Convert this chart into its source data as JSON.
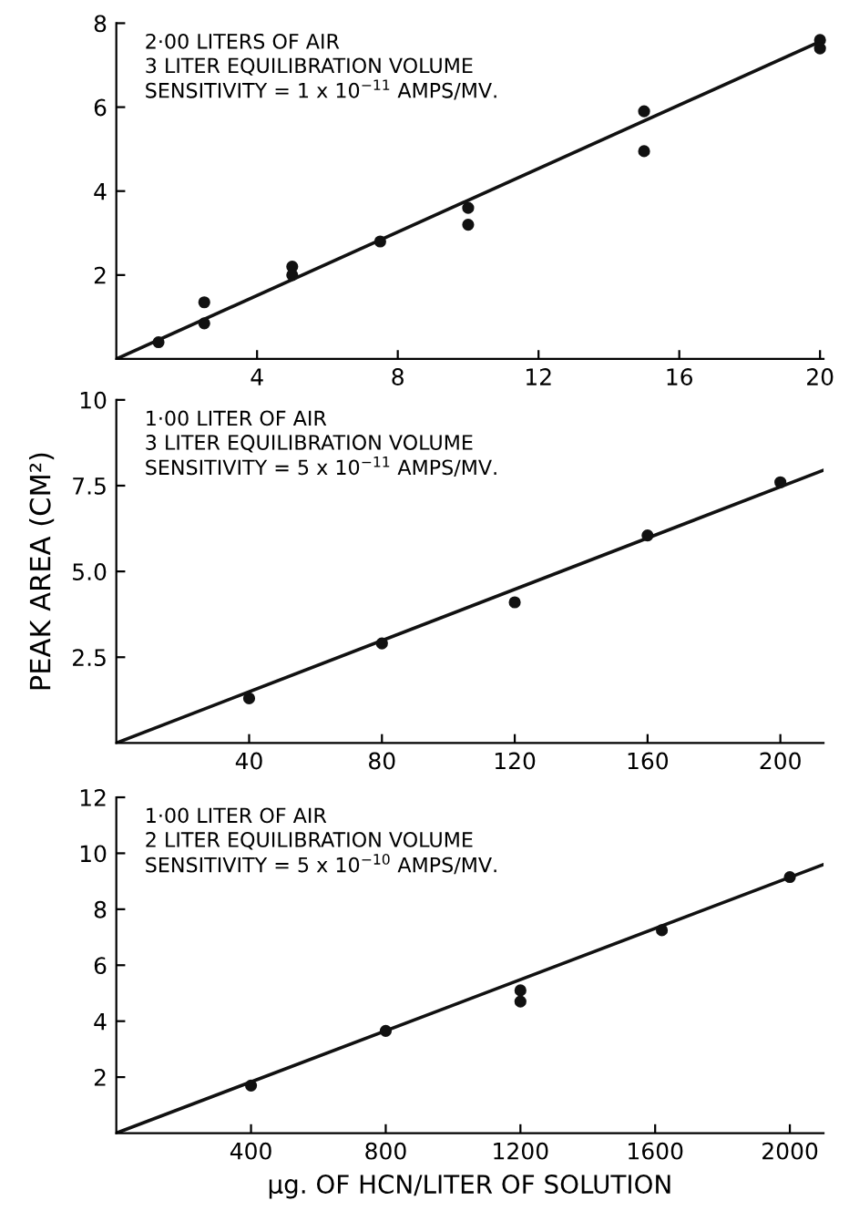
{
  "chart_data": [
    {
      "type": "scatter",
      "annotations": [
        "2·00 LITERS OF AIR",
        "3 LITER EQUILIBRATION VOLUME",
        "SENSITIVITY = 1 x 10$^{−11}$ AMPS/MV."
      ],
      "xlim": [
        0,
        20.1
      ],
      "ylim": [
        0,
        8
      ],
      "xticks": [
        4,
        8,
        12,
        16,
        20
      ],
      "yticks": [
        2,
        4,
        6,
        8
      ],
      "grid": false,
      "series": [
        {
          "color": "#111111",
          "marker": "circle",
          "x": [
            1.2,
            2.5,
            2.5,
            5,
            5,
            7.5,
            10,
            10,
            15,
            15,
            20,
            20
          ],
          "values": [
            0.4,
            1.35,
            0.85,
            2.2,
            2.0,
            2.8,
            3.6,
            3.2,
            5.9,
            4.95,
            7.6,
            7.4
          ]
        },
        {
          "type": "line",
          "color": "#111111",
          "x": [
            0,
            20.1
          ],
          "values": [
            0,
            7.6
          ]
        }
      ]
    },
    {
      "type": "scatter",
      "ylabel": "PEAK AREA (CM²)",
      "annotations": [
        "1·00 LITER OF AIR",
        "3 LITER EQUILIBRATION VOLUME",
        "SENSITIVITY = 5 x 10$^{−11}$ AMPS/MV."
      ],
      "xlim": [
        0,
        213
      ],
      "ylim": [
        0,
        10
      ],
      "xticks": [
        40,
        80,
        120,
        160,
        200
      ],
      "yticks": [
        2.5,
        {
          "value": 5,
          "label": "5.0"
        },
        7.5,
        10
      ],
      "grid": false,
      "series": [
        {
          "color": "#111111",
          "marker": "circle",
          "x": [
            40,
            80,
            120,
            160,
            200
          ],
          "values": [
            1.3,
            2.9,
            4.1,
            6.05,
            7.6
          ]
        },
        {
          "type": "line",
          "color": "#111111",
          "x": [
            0,
            213
          ],
          "values": [
            0,
            7.95
          ]
        }
      ]
    },
    {
      "type": "scatter",
      "xlabel": "µg. OF HCN/LITER OF SOLUTION",
      "annotations": [
        "1·00 LITER OF AIR",
        "2 LITER EQUILIBRATION VOLUME",
        "SENSITIVITY = 5 x 10$^{−10}$ AMPS/MV."
      ],
      "xlim": [
        0,
        2100
      ],
      "ylim": [
        0,
        12
      ],
      "xticks": [
        400,
        800,
        1200,
        1600,
        2000
      ],
      "yticks": [
        2,
        4,
        6,
        8,
        10,
        12
      ],
      "grid": false,
      "series": [
        {
          "color": "#111111",
          "marker": "circle",
          "x": [
            400,
            800,
            1200,
            1200,
            1620,
            2000
          ],
          "values": [
            1.7,
            3.65,
            5.1,
            4.7,
            7.25,
            9.15
          ]
        },
        {
          "type": "line",
          "color": "#111111",
          "x": [
            0,
            2100
          ],
          "values": [
            0,
            9.6
          ]
        }
      ]
    }
  ]
}
